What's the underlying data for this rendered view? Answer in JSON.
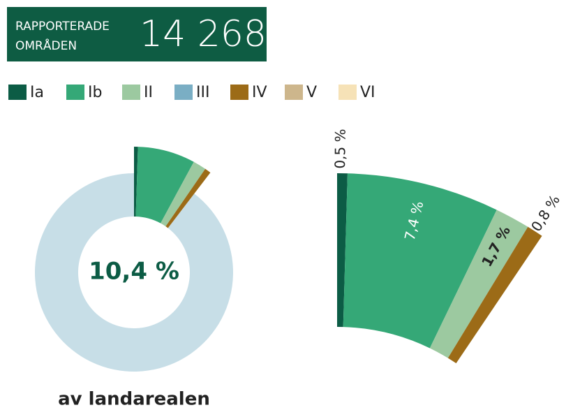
{
  "header": {
    "label_line1": "RAPPORTERADE",
    "label_line2": "OMRÅDEN",
    "count": "14 268",
    "color": "#0e5c43"
  },
  "chart_data": {
    "type": "pie",
    "categories": [
      "Ia",
      "Ib",
      "II",
      "III",
      "IV",
      "V",
      "VI"
    ],
    "colors": [
      "#0c5c45",
      "#35a877",
      "#9cc9a0",
      "#7aaec4",
      "#9c6b17",
      "#cdb68c",
      "#f6e2b7"
    ],
    "values": [
      0.5,
      7.4,
      1.7,
      null,
      0.8,
      null,
      null
    ],
    "value_labels": [
      "0,5 %",
      "7,4 %",
      "1,7 %",
      null,
      "0,8 %",
      null,
      null
    ],
    "center_label": "10,4 %",
    "subtitle": "av landarealen",
    "remainder_color": "#c7dee7"
  }
}
